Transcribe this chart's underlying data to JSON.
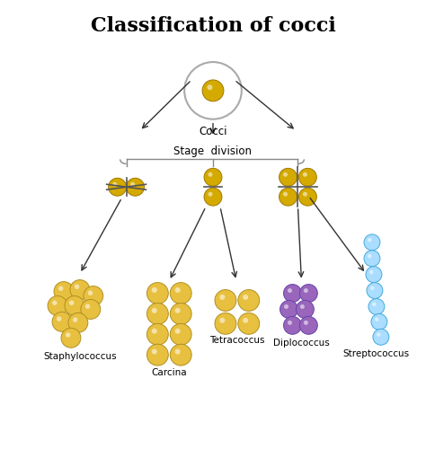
{
  "title": "Classification of cocci",
  "background_color": "#ffffff",
  "title_fontsize": 16,
  "title_fontweight": "bold",
  "cocci_label": "Cocci",
  "stage_label": "Stage  division",
  "types": [
    "Staphylococcus",
    "Carcina",
    "Tetracoccus",
    "Diplococcus",
    "Streptococcus"
  ],
  "gold_face": "#D4AA00",
  "gold_edge": "#A07800",
  "gold_cluster_face": "#E8C040",
  "gold_cluster_edge": "#B09020",
  "purple_face": "#9966BB",
  "purple_edge": "#6644AA",
  "cyan_face": "#AADDFF",
  "cyan_edge": "#44AADD",
  "line_color": "#555555",
  "arrow_color": "#333333"
}
